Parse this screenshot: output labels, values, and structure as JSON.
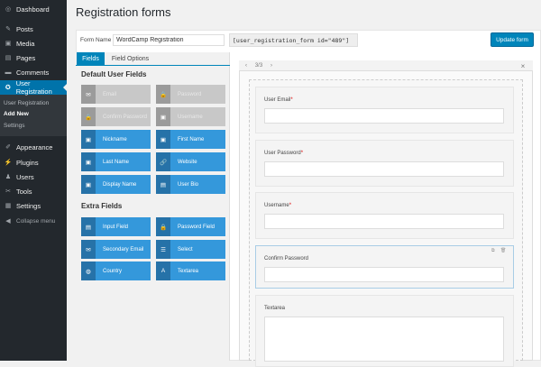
{
  "sidebar": {
    "items": [
      {
        "label": "Dashboard",
        "icon": "dashboard-icon",
        "glyph": "◎"
      },
      {
        "label": "Posts",
        "icon": "pin-icon",
        "glyph": "✎"
      },
      {
        "label": "Media",
        "icon": "media-icon",
        "glyph": "▣"
      },
      {
        "label": "Pages",
        "icon": "pages-icon",
        "glyph": "▤"
      },
      {
        "label": "Comments",
        "icon": "comment-icon",
        "glyph": "▬"
      },
      {
        "label": "User Registration",
        "icon": "user-registration-icon",
        "glyph": "✪"
      },
      {
        "label": "Appearance",
        "icon": "appearance-icon",
        "glyph": "✐"
      },
      {
        "label": "Plugins",
        "icon": "plugin-icon",
        "glyph": "⚡"
      },
      {
        "label": "Users",
        "icon": "users-icon",
        "glyph": "♟"
      },
      {
        "label": "Tools",
        "icon": "tools-icon",
        "glyph": "✂"
      },
      {
        "label": "Settings",
        "icon": "settings-icon",
        "glyph": "▦"
      },
      {
        "label": "Collapse menu",
        "icon": "collapse-icon",
        "glyph": "◀"
      }
    ],
    "submenu": [
      "User Registration",
      "Add New",
      "Settings"
    ]
  },
  "page_title": "Registration forms",
  "form": {
    "name_label": "Form Name",
    "name_value": "WordCamp Registration",
    "shortcode": "[user_registration_form id=\"489\"]",
    "update_label": "Update form"
  },
  "tabs": [
    "Fields",
    "Field Options"
  ],
  "default_heading": "Default User Fields",
  "default_fields": [
    {
      "label": "Email",
      "glyph": "✉",
      "disabled": true
    },
    {
      "label": "Password",
      "glyph": "🔒",
      "disabled": true
    },
    {
      "label": "Confirm Password",
      "glyph": "🔒",
      "disabled": true
    },
    {
      "label": "Username",
      "glyph": "▣",
      "disabled": true
    },
    {
      "label": "Nickname",
      "glyph": "▣",
      "disabled": false
    },
    {
      "label": "First Name",
      "glyph": "▣",
      "disabled": false
    },
    {
      "label": "Last Name",
      "glyph": "▣",
      "disabled": false
    },
    {
      "label": "Website",
      "glyph": "🔗",
      "disabled": false
    },
    {
      "label": "Display Name",
      "glyph": "▣",
      "disabled": false
    },
    {
      "label": "User Bio",
      "glyph": "▤",
      "disabled": false
    }
  ],
  "extra_heading": "Extra Fields",
  "extra_fields": [
    {
      "label": "Input Field",
      "glyph": "▤"
    },
    {
      "label": "Password Field",
      "glyph": "🔒"
    },
    {
      "label": "Secondary Email",
      "glyph": "✉"
    },
    {
      "label": "Select",
      "glyph": "☰"
    },
    {
      "label": "Country",
      "glyph": "◍"
    },
    {
      "label": "Textarea",
      "glyph": "A"
    }
  ],
  "preview": {
    "pager": "3/3",
    "prev": "‹",
    "next": "›",
    "close": "×"
  },
  "form_fields": [
    {
      "label": "User Email",
      "required": "*"
    },
    {
      "label": "User Password",
      "required": "*"
    },
    {
      "label": "Username",
      "required": "*"
    },
    {
      "label": "Confirm Password",
      "required": ""
    },
    {
      "label": "Textarea",
      "required": ""
    }
  ]
}
